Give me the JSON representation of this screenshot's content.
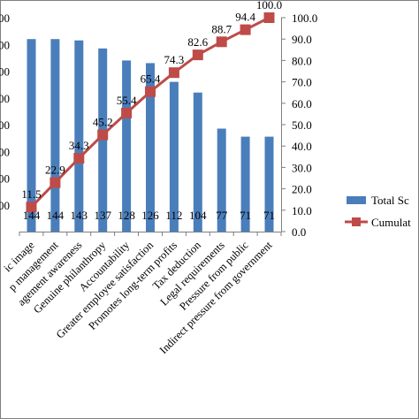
{
  "chart_data": {
    "type": "bar",
    "categories": [
      "Public image",
      "Top management",
      "Management awareness",
      "Genuine philanthropy",
      "Accountability",
      "Greater employee satisfaction",
      "Promotes long-term profits",
      "Tax deduction",
      "Legal requirements",
      "Pressure from public",
      "Indirect pressure from government"
    ],
    "category_labels": [
      "ic image",
      "p management",
      "agement awareness",
      "Genuine philanthropy",
      "Accountability",
      "Greater employee satisfaction",
      "Promotes long-term profits",
      "Tax deduction",
      "Legal requirements",
      "Pressure from public",
      "Indirect pressure from government"
    ],
    "series": [
      {
        "name": "Total Sc",
        "type": "bar",
        "axis": "left",
        "values": [
          144,
          144,
          143,
          137,
          128,
          126,
          112,
          104,
          77,
          71,
          71
        ],
        "labels": [
          "144",
          "144",
          "143",
          "137",
          "128",
          "126",
          "112",
          "104",
          "77",
          "71",
          "71"
        ]
      },
      {
        "name": "Cumulat",
        "type": "line",
        "axis": "right",
        "values": [
          11.5,
          22.9,
          34.3,
          45.2,
          55.4,
          65.4,
          74.3,
          82.6,
          88.7,
          94.4,
          100.0
        ],
        "labels": [
          "11.5",
          "22.9",
          "34.3",
          "45.2",
          "55.4",
          "65.4",
          "74.3",
          "82.6",
          "88.7",
          "94.4",
          "100.0"
        ]
      }
    ],
    "left_axis": {
      "ylim": [
        0,
        160
      ],
      "ticks": [
        "00",
        "00",
        "00",
        "00",
        "00",
        "00",
        "00",
        "00"
      ]
    },
    "right_axis": {
      "ylim": [
        0,
        100
      ],
      "ticks": [
        "0.0",
        "10.0",
        "20.0",
        "30.0",
        "40.0",
        "50.0",
        "60.0",
        "70.0",
        "80.0",
        "90.0",
        "100.0"
      ]
    },
    "legend": {
      "placement": "right",
      "entries": [
        "Total Sc",
        "Cumulat"
      ]
    },
    "colors": {
      "bar": "#4a7ebb",
      "line": "#be4b48",
      "marker": "#be4b48"
    }
  }
}
